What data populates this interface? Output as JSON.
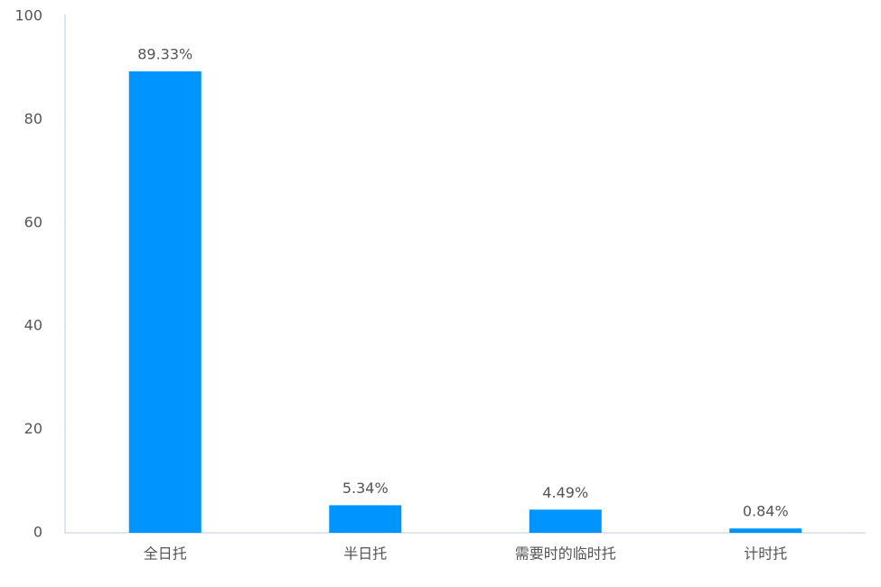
{
  "chart_data": {
    "type": "bar",
    "categories": [
      "全日托",
      "半日托",
      "需要时的临时托",
      "计时托"
    ],
    "values": [
      89.33,
      5.34,
      4.49,
      0.84
    ],
    "value_labels": [
      "89.33%",
      "5.34%",
      "4.49%",
      "0.84%"
    ],
    "color": "#0094ff",
    "ylim": [
      0,
      100
    ],
    "yticks": [
      0,
      20,
      40,
      60,
      80,
      100
    ],
    "grid": false
  }
}
